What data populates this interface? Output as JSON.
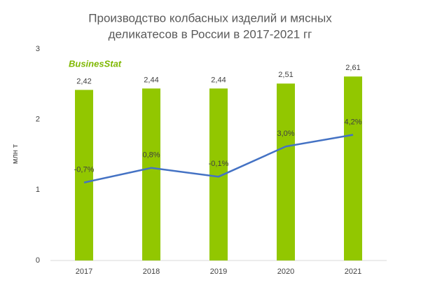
{
  "chart_data": {
    "type": "bar-line",
    "title": [
      "Производство колбасных изделий и мясных",
      "деликатесов в России в 2017-2021 гг"
    ],
    "y_label": "млн т",
    "watermark": "BusinesStat",
    "categories": [
      "2017",
      "2018",
      "2019",
      "2020",
      "2021"
    ],
    "series": [
      {
        "type": "bar",
        "color": "#92c700",
        "values": [
          2.42,
          2.44,
          2.44,
          2.51,
          2.61
        ],
        "value_labels": [
          "2,42",
          "2,44",
          "2,44",
          "2,51",
          "2,61"
        ]
      },
      {
        "type": "line",
        "axis": "y2",
        "color": "#4472c4",
        "values": [
          -0.7,
          0.8,
          -0.1,
          3.0,
          4.2
        ],
        "value_labels": [
          "-0,7%",
          "0,8%",
          "-0,1%",
          "3,0%",
          "4,2%"
        ]
      }
    ],
    "ylim": [
      0,
      3
    ],
    "yticks": [
      0,
      1,
      2,
      3
    ],
    "y2lim": [
      -8.7,
      13.0
    ],
    "grid": false
  }
}
